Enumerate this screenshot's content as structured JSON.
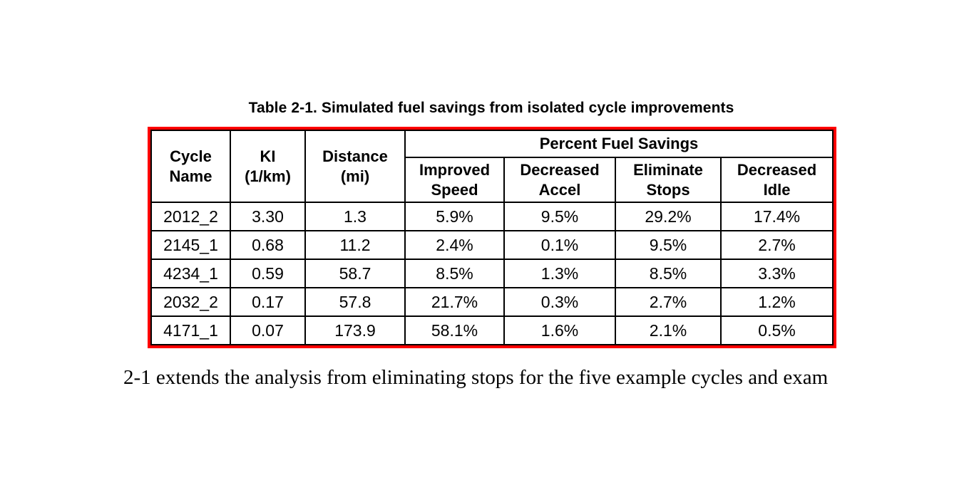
{
  "caption": "Table 2-1. Simulated fuel savings from isolated cycle improvements",
  "table": {
    "border_color": "#fe0000",
    "grid_color": "#000000",
    "headers": [
      "Cycle\nName",
      "KI\n(1/km)",
      "Distance\n(mi)"
    ],
    "group_header": "Percent Fuel Savings",
    "sub_headers": [
      "Improved\nSpeed",
      "Decreased\nAccel",
      "Eliminate\nStops",
      "Decreased\nIdle"
    ],
    "rows": [
      [
        "2012_2",
        "3.30",
        "1.3",
        "5.9%",
        "9.5%",
        "29.2%",
        "17.4%"
      ],
      [
        "2145_1",
        "0.68",
        "11.2",
        "2.4%",
        "0.1%",
        "9.5%",
        "2.7%"
      ],
      [
        "4234_1",
        "0.59",
        "58.7",
        "8.5%",
        "1.3%",
        "8.5%",
        "3.3%"
      ],
      [
        "2032_2",
        "0.17",
        "57.8",
        "21.7%",
        "0.3%",
        "2.7%",
        "1.2%"
      ],
      [
        "4171_1",
        "0.07",
        "173.9",
        "58.1%",
        "1.6%",
        "2.1%",
        "0.5%"
      ]
    ]
  },
  "body_text": "2-1 extends the analysis from eliminating stops for the five example cycles and exam"
}
